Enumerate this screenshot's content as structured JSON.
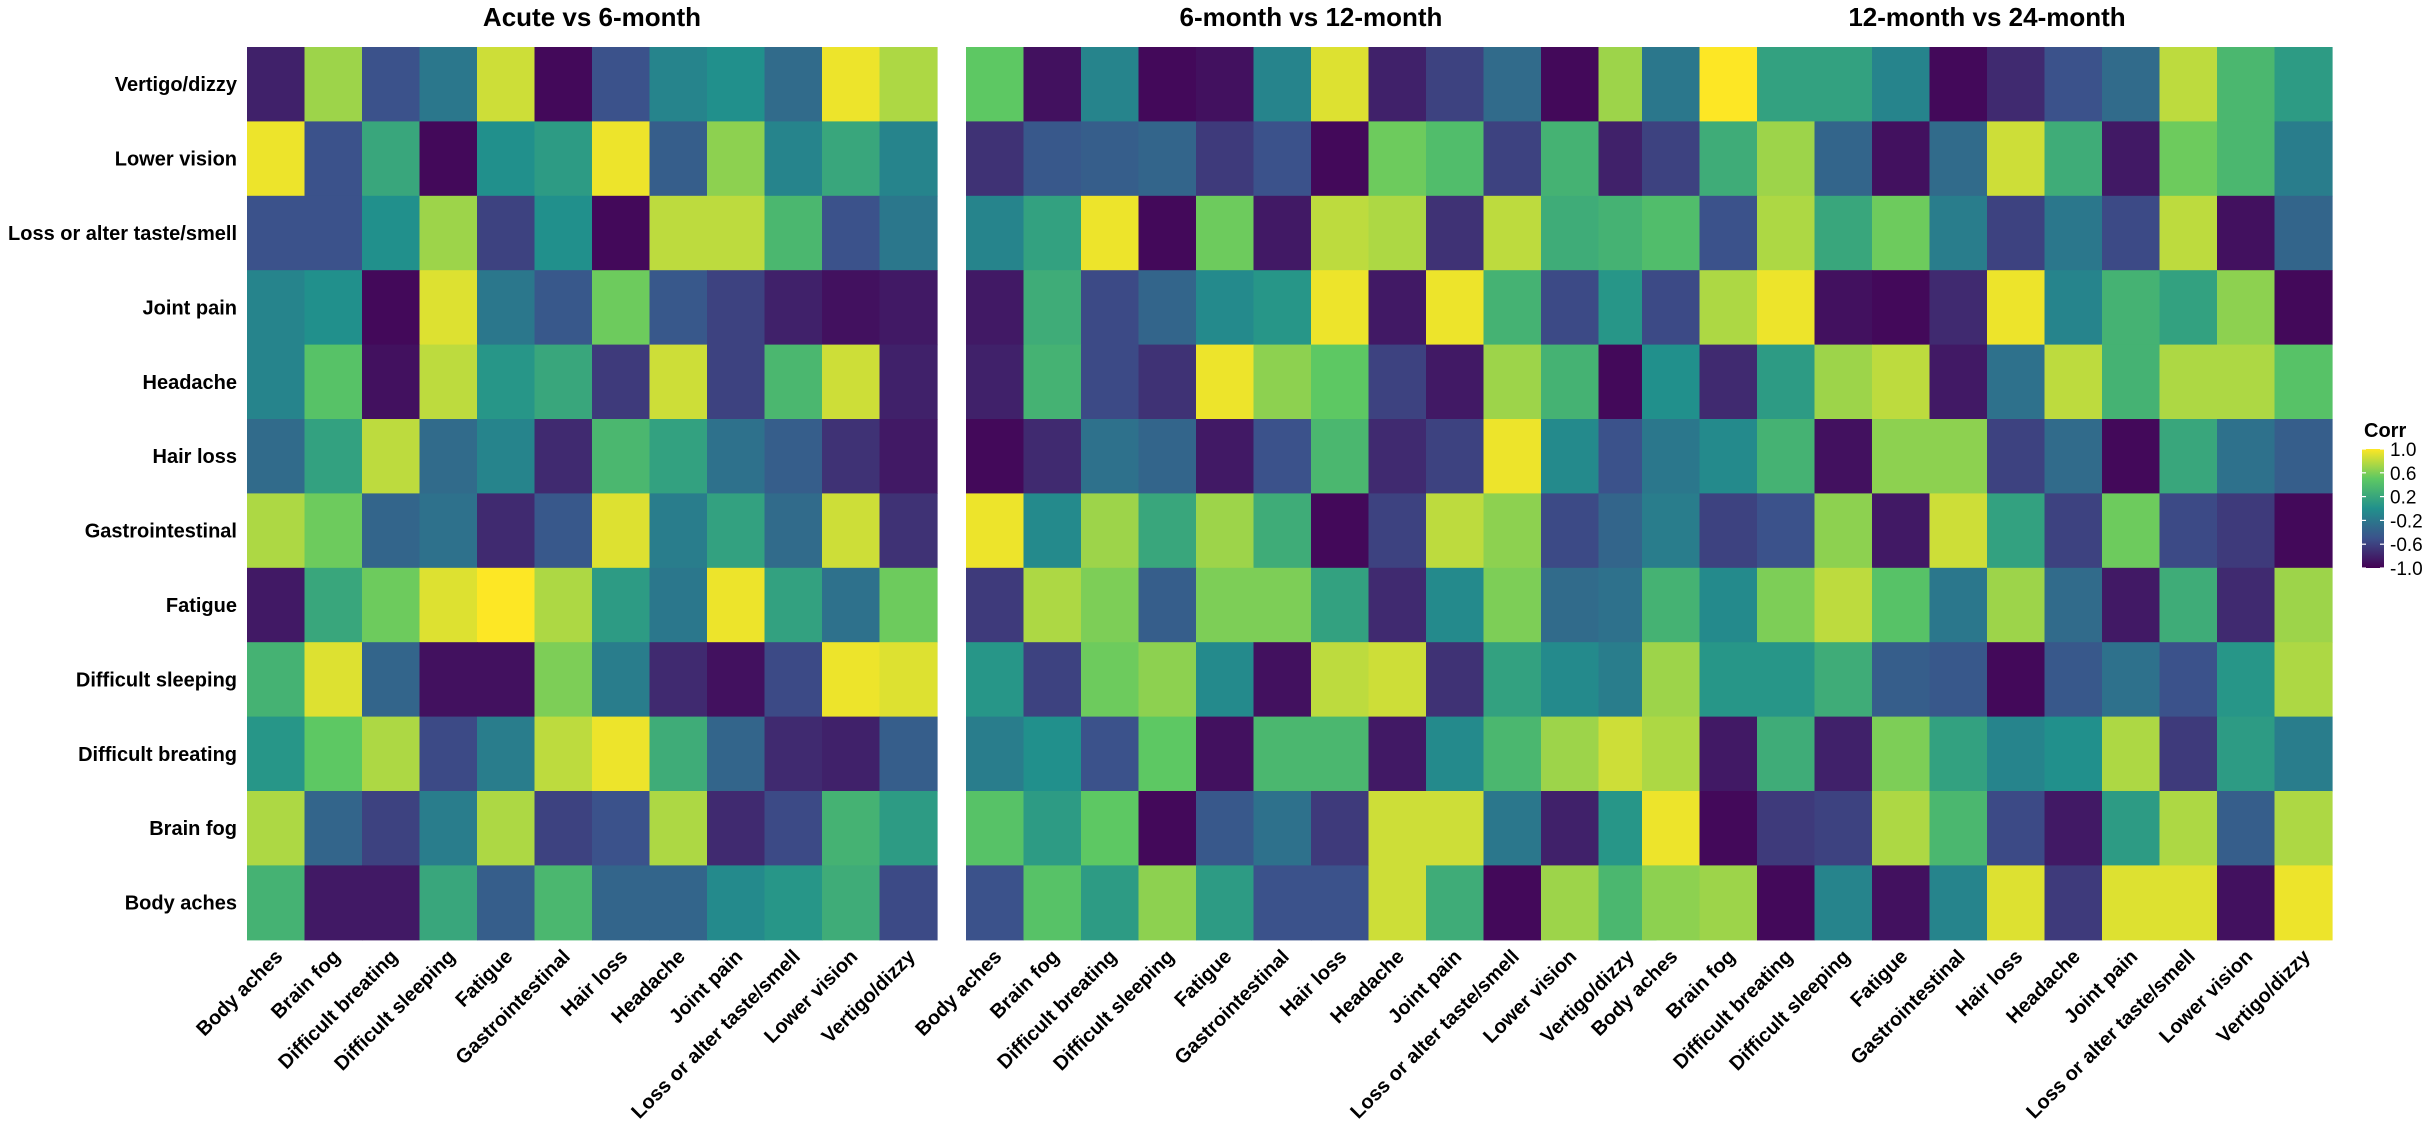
{
  "chart_data": {
    "type": "heatmap",
    "legend": {
      "title": "Corr",
      "ticks": [
        "1.0",
        "0.6",
        "0.2",
        "-0.2",
        "-0.6",
        "-1.0"
      ],
      "tick_values": [
        1.0,
        0.6,
        0.2,
        -0.2,
        -0.6,
        -1.0
      ],
      "range": [
        -1,
        1
      ],
      "colorscale": [
        "#440154",
        "#3b528b",
        "#21908c",
        "#5dc863",
        "#fde725"
      ],
      "placement": "right"
    },
    "rows": [
      "Vertigo/dizzy",
      "Lower vision",
      "Loss or alter taste/smell",
      "Joint pain",
      "Headache",
      "Hair loss",
      "Gastrointestinal",
      "Fatigue",
      "Difficult sleeping",
      "Difficult breating",
      "Brain fog",
      "Body aches"
    ],
    "columns": [
      "Body aches",
      "Brain fog",
      "Difficult breating",
      "Difficult sleeping",
      "Fatigue",
      "Gastrointestinal",
      "Hair loss",
      "Headache",
      "Joint pain",
      "Loss or alter taste/smell",
      "Lower vision",
      "Vertigo/dizzy"
    ],
    "panels": [
      {
        "title": "Acute vs 6-month",
        "values": [
          [
            -0.8,
            0.7,
            -0.5,
            -0.2,
            0.85,
            -0.95,
            -0.5,
            -0.1,
            0.0,
            -0.3,
            0.95,
            0.75
          ],
          [
            0.95,
            -0.5,
            0.2,
            -0.95,
            0.0,
            0.1,
            0.95,
            -0.4,
            0.65,
            -0.1,
            0.2,
            -0.1
          ],
          [
            -0.5,
            -0.5,
            0.0,
            0.7,
            -0.6,
            0.0,
            -0.95,
            0.8,
            0.8,
            0.35,
            -0.5,
            -0.2
          ],
          [
            -0.1,
            0.0,
            -0.95,
            0.9,
            -0.2,
            -0.45,
            0.55,
            -0.45,
            -0.6,
            -0.8,
            -0.9,
            -0.85
          ],
          [
            -0.1,
            0.45,
            -0.9,
            0.8,
            0.05,
            0.2,
            -0.65,
            0.85,
            -0.6,
            0.35,
            0.85,
            -0.8
          ],
          [
            -0.3,
            0.15,
            0.8,
            -0.3,
            -0.1,
            -0.75,
            0.35,
            0.15,
            -0.25,
            -0.4,
            -0.7,
            -0.85
          ],
          [
            0.75,
            0.55,
            -0.35,
            -0.25,
            -0.75,
            -0.45,
            0.9,
            -0.15,
            0.15,
            -0.3,
            0.85,
            -0.7
          ],
          [
            -0.85,
            0.2,
            0.55,
            0.9,
            1.0,
            0.75,
            0.1,
            -0.2,
            0.95,
            0.15,
            -0.25,
            0.55
          ],
          [
            0.3,
            0.9,
            -0.35,
            -0.9,
            -0.9,
            0.6,
            -0.15,
            -0.75,
            -0.9,
            -0.55,
            0.95,
            0.9
          ],
          [
            0.05,
            0.5,
            0.75,
            -0.55,
            -0.15,
            0.8,
            0.95,
            0.25,
            -0.35,
            -0.75,
            -0.8,
            -0.4
          ],
          [
            0.75,
            -0.35,
            -0.6,
            -0.15,
            0.75,
            -0.6,
            -0.5,
            0.75,
            -0.75,
            -0.55,
            0.3,
            0.1
          ],
          [
            0.3,
            -0.85,
            -0.85,
            0.2,
            -0.4,
            0.35,
            -0.35,
            -0.35,
            -0.05,
            0.05,
            0.25,
            -0.55
          ]
        ]
      },
      {
        "title": "6-month vs 12-month",
        "values": [
          [
            0.5,
            -0.9,
            -0.1,
            -0.95,
            -0.9,
            -0.1,
            0.9,
            -0.8,
            -0.6,
            -0.3,
            -0.95,
            0.7
          ],
          [
            -0.7,
            -0.45,
            -0.4,
            -0.35,
            -0.65,
            -0.5,
            -0.95,
            0.55,
            0.4,
            -0.6,
            0.3,
            -0.8
          ],
          [
            -0.1,
            0.15,
            0.95,
            -0.95,
            0.55,
            -0.85,
            0.8,
            0.75,
            -0.7,
            0.8,
            0.25,
            0.3
          ],
          [
            -0.85,
            0.25,
            -0.55,
            -0.35,
            -0.05,
            0.05,
            0.95,
            -0.85,
            0.95,
            0.3,
            -0.55,
            0.05
          ],
          [
            -0.8,
            0.3,
            -0.55,
            -0.7,
            0.95,
            0.65,
            0.5,
            -0.6,
            -0.85,
            0.7,
            0.3,
            -0.95
          ],
          [
            -0.95,
            -0.75,
            -0.25,
            -0.35,
            -0.85,
            -0.5,
            0.35,
            -0.75,
            -0.6,
            0.95,
            -0.05,
            -0.5
          ],
          [
            0.95,
            -0.05,
            0.7,
            0.2,
            0.7,
            0.25,
            -0.95,
            -0.6,
            0.8,
            0.65,
            -0.55,
            -0.35
          ],
          [
            -0.65,
            0.75,
            0.6,
            -0.4,
            0.6,
            0.6,
            0.15,
            -0.75,
            -0.05,
            0.6,
            -0.3,
            -0.25
          ],
          [
            0.05,
            -0.6,
            0.55,
            0.65,
            -0.05,
            -0.9,
            0.8,
            0.85,
            -0.7,
            0.15,
            -0.05,
            -0.15
          ],
          [
            -0.15,
            0.0,
            -0.5,
            0.5,
            -0.9,
            0.35,
            0.35,
            -0.85,
            -0.05,
            0.35,
            0.7,
            0.85
          ],
          [
            0.45,
            0.1,
            0.5,
            -0.95,
            -0.45,
            -0.25,
            -0.65,
            0.85,
            0.85,
            -0.2,
            -0.8,
            0.05
          ],
          [
            -0.5,
            0.45,
            0.1,
            0.65,
            0.1,
            -0.5,
            -0.5,
            0.85,
            0.25,
            -0.95,
            0.7,
            0.35
          ]
        ]
      },
      {
        "title": "12-month vs 24-month",
        "values": [
          [
            -0.2,
            1.0,
            0.15,
            0.15,
            -0.1,
            -0.95,
            -0.75,
            -0.5,
            -0.3,
            0.8,
            0.35,
            0.1
          ],
          [
            -0.6,
            0.25,
            0.7,
            -0.35,
            -0.9,
            -0.3,
            0.85,
            0.25,
            -0.85,
            0.55,
            0.35,
            -0.15
          ],
          [
            0.4,
            -0.5,
            0.75,
            0.2,
            0.55,
            -0.15,
            -0.6,
            -0.2,
            -0.55,
            0.8,
            -0.9,
            -0.35
          ],
          [
            -0.55,
            0.75,
            0.95,
            -0.9,
            -0.95,
            -0.75,
            0.95,
            -0.1,
            0.3,
            0.15,
            0.65,
            -0.95
          ],
          [
            0.0,
            -0.75,
            0.1,
            0.7,
            0.8,
            -0.85,
            -0.25,
            0.8,
            0.3,
            0.75,
            0.75,
            0.45
          ],
          [
            -0.2,
            -0.05,
            0.3,
            -0.9,
            0.65,
            0.65,
            -0.6,
            -0.3,
            -0.95,
            0.2,
            -0.25,
            -0.4
          ],
          [
            -0.15,
            -0.6,
            -0.5,
            0.65,
            -0.85,
            0.85,
            0.15,
            -0.6,
            0.55,
            -0.55,
            -0.65,
            -0.95
          ],
          [
            0.3,
            -0.05,
            0.6,
            0.8,
            0.45,
            -0.2,
            0.7,
            -0.3,
            -0.85,
            0.25,
            -0.75,
            0.7
          ],
          [
            0.7,
            0.05,
            0.05,
            0.25,
            -0.4,
            -0.45,
            -0.95,
            -0.45,
            -0.25,
            -0.5,
            0.05,
            0.75
          ],
          [
            0.75,
            -0.85,
            0.25,
            -0.8,
            0.6,
            0.15,
            -0.1,
            0.0,
            0.75,
            -0.65,
            0.1,
            -0.15
          ],
          [
            0.95,
            -0.95,
            -0.65,
            -0.6,
            0.75,
            0.35,
            -0.55,
            -0.85,
            0.1,
            0.75,
            -0.4,
            0.75
          ],
          [
            0.65,
            0.7,
            -0.95,
            -0.1,
            -0.9,
            -0.1,
            0.9,
            -0.65,
            0.9,
            0.9,
            -0.9,
            0.95
          ]
        ]
      }
    ]
  }
}
